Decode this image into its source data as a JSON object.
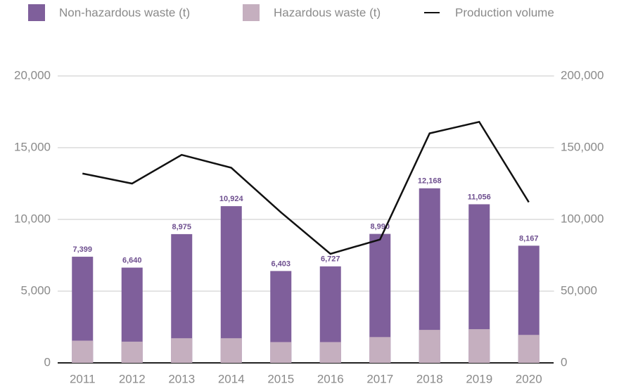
{
  "chart_data": {
    "type": "bar",
    "barmode": "overlay",
    "categories": [
      "2011",
      "2012",
      "2013",
      "2014",
      "2015",
      "2016",
      "2017",
      "2018",
      "2019",
      "2020"
    ],
    "series": [
      {
        "name": "Non-hazardous waste (t)",
        "color": "#7f5f9b",
        "values": [
          7399,
          6640,
          8975,
          10924,
          6403,
          6727,
          8990,
          12168,
          11056,
          8167
        ],
        "value_labels": [
          "7,399",
          "6,640",
          "8,975",
          "10,924",
          "6,403",
          "6,727",
          "8,990",
          "12,168",
          "11,056",
          "8,167"
        ]
      },
      {
        "name": "Hazardous waste (t)",
        "color": "#c5afbf",
        "values": [
          1550,
          1480,
          1720,
          1720,
          1450,
          1450,
          1800,
          2300,
          2350,
          1950
        ]
      },
      {
        "name": "Production volume",
        "type": "line",
        "axis": "y2",
        "color": "#111111",
        "values": [
          132000,
          125000,
          145000,
          136000,
          105000,
          76000,
          86000,
          160000,
          168000,
          112000
        ]
      }
    ],
    "ylim": [
      0,
      20000
    ],
    "yticks": [
      0,
      {
        "value": 5000,
        "label": "5,000"
      },
      {
        "value": 10000,
        "label": "10,000"
      },
      {
        "value": 15000,
        "label": "15,000"
      },
      {
        "value": 20000,
        "label": "20,000"
      }
    ],
    "y2lim": [
      0,
      200000
    ],
    "y2ticks": [
      0,
      {
        "value": 50000,
        "label": "50,000"
      },
      {
        "value": 100000,
        "label": "100,000"
      },
      {
        "value": 150000,
        "label": "150,000"
      },
      {
        "value": 200000,
        "label": "200,000"
      }
    ],
    "grid": true,
    "legend": "top"
  }
}
